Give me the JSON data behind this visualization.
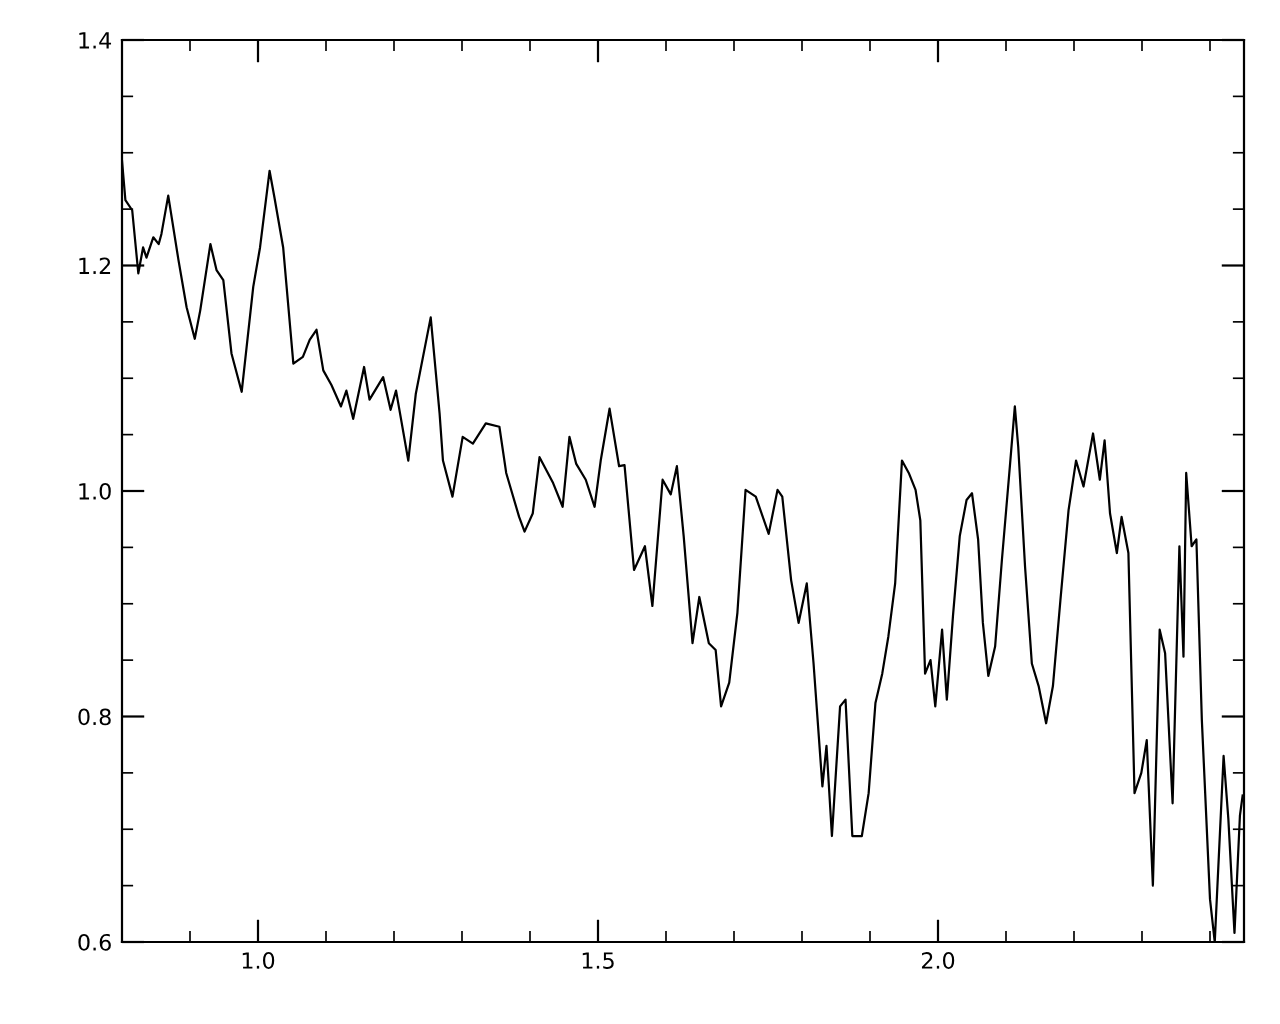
{
  "chart_data": {
    "type": "line",
    "xlim": [
      0.8,
      2.45
    ],
    "ylim": [
      0.6,
      1.4
    ],
    "xticks": [
      {
        "value": 1.0,
        "label": "1.0"
      },
      {
        "value": 1.5,
        "label": "1.5"
      },
      {
        "value": 2.0,
        "label": "2.0"
      }
    ],
    "yticks": [
      {
        "value": 0.6,
        "label": "0.6"
      },
      {
        "value": 0.8,
        "label": "0.8"
      },
      {
        "value": 1.0,
        "label": "1.0"
      },
      {
        "value": 1.2,
        "label": "1.2"
      },
      {
        "value": 1.4,
        "label": "1.4"
      }
    ],
    "grid": false,
    "legend": false,
    "series": [
      {
        "color": "#000000",
        "x": [
          0.8,
          0.805,
          0.815,
          0.824,
          0.831,
          0.836,
          0.846,
          0.854,
          0.858,
          0.868,
          0.883,
          0.895,
          0.907,
          0.915,
          0.93,
          0.939,
          0.949,
          0.961,
          0.976,
          0.993,
          1.003,
          1.017,
          1.024,
          1.037,
          1.052,
          1.066,
          1.076,
          1.086,
          1.096,
          1.108,
          1.122,
          1.13,
          1.14,
          1.156,
          1.164,
          1.184,
          1.195,
          1.203,
          1.221,
          1.232,
          1.254,
          1.267,
          1.272,
          1.286,
          1.301,
          1.316,
          1.335,
          1.355,
          1.365,
          1.384,
          1.392,
          1.404,
          1.414,
          1.434,
          1.448,
          1.458,
          1.468,
          1.482,
          1.495,
          1.504,
          1.517,
          1.531,
          1.539,
          1.553,
          1.569,
          1.58,
          1.595,
          1.607,
          1.616,
          1.626,
          1.639,
          1.649,
          1.663,
          1.673,
          1.681,
          1.693,
          1.705,
          1.717,
          1.732,
          1.751,
          1.764,
          1.771,
          1.784,
          1.795,
          1.807,
          1.817,
          1.83,
          1.836,
          1.844,
          1.856,
          1.864,
          1.874,
          1.888,
          1.898,
          1.908,
          1.918,
          1.927,
          1.937,
          1.947,
          1.957,
          1.967,
          1.974,
          1.981,
          1.989,
          1.996,
          2.006,
          2.013,
          2.022,
          2.032,
          2.042,
          2.05,
          2.059,
          2.066,
          2.074,
          2.084,
          2.094,
          2.106,
          2.113,
          2.118,
          2.128,
          2.138,
          2.148,
          2.159,
          2.169,
          2.18,
          2.192,
          2.203,
          2.214,
          2.228,
          2.238,
          2.245,
          2.253,
          2.263,
          2.27,
          2.28,
          2.289,
          2.299,
          2.307,
          2.316,
          2.326,
          2.334,
          2.345,
          2.355,
          2.361,
          2.365,
          2.373,
          2.38,
          2.388,
          2.4,
          2.407,
          2.42,
          2.427,
          2.436,
          2.444,
          2.448
        ],
        "values": [
          1.293,
          1.258,
          1.249,
          1.193,
          1.216,
          1.207,
          1.225,
          1.219,
          1.228,
          1.262,
          1.205,
          1.163,
          1.135,
          1.16,
          1.219,
          1.196,
          1.187,
          1.122,
          1.088,
          1.181,
          1.216,
          1.284,
          1.261,
          1.216,
          1.113,
          1.119,
          1.134,
          1.143,
          1.107,
          1.094,
          1.075,
          1.089,
          1.064,
          1.11,
          1.081,
          1.101,
          1.072,
          1.089,
          1.027,
          1.086,
          1.154,
          1.069,
          1.027,
          0.995,
          1.048,
          1.042,
          1.06,
          1.057,
          1.016,
          0.977,
          0.964,
          0.98,
          1.03,
          1.007,
          0.986,
          1.048,
          1.024,
          1.01,
          0.986,
          1.027,
          1.073,
          1.022,
          1.023,
          0.93,
          0.951,
          0.898,
          1.01,
          0.997,
          1.022,
          0.96,
          0.865,
          0.906,
          0.865,
          0.859,
          0.809,
          0.83,
          0.892,
          1.001,
          0.995,
          0.962,
          1.001,
          0.995,
          0.921,
          0.883,
          0.918,
          0.847,
          0.738,
          0.774,
          0.694,
          0.809,
          0.815,
          0.694,
          0.694,
          0.732,
          0.812,
          0.838,
          0.871,
          0.918,
          1.027,
          1.016,
          1.001,
          0.974,
          0.838,
          0.85,
          0.809,
          0.877,
          0.815,
          0.889,
          0.96,
          0.992,
          0.998,
          0.957,
          0.883,
          0.836,
          0.862,
          0.939,
          1.024,
          1.075,
          1.039,
          0.933,
          0.847,
          0.827,
          0.794,
          0.827,
          0.903,
          0.983,
          1.027,
          1.004,
          1.051,
          1.01,
          1.045,
          0.98,
          0.945,
          0.977,
          0.945,
          0.732,
          0.75,
          0.779,
          0.65,
          0.877,
          0.856,
          0.723,
          0.951,
          0.853,
          1.016,
          0.951,
          0.957,
          0.797,
          0.638,
          0.6,
          0.765,
          0.709,
          0.608,
          0.712,
          0.73
        ]
      }
    ]
  }
}
